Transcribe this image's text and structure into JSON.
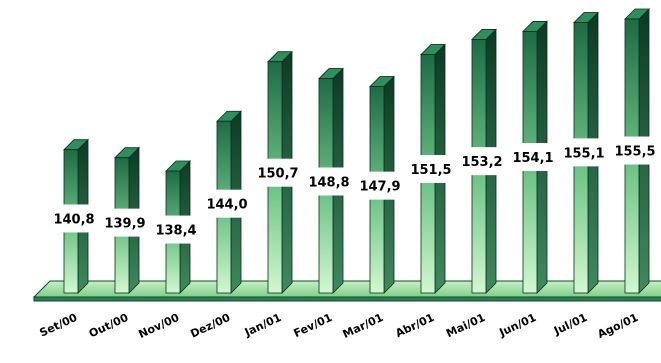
{
  "chart_data": {
    "type": "bar",
    "categories": [
      "Set/00",
      "Out/00",
      "Nov/00",
      "Dez/00",
      "Jan/01",
      "Fev/01",
      "Mar/01",
      "Abr/01",
      "Mai/01",
      "Jun/01",
      "Jul/01",
      "Ago/01"
    ],
    "values": [
      140.8,
      139.9,
      138.4,
      144.0,
      150.7,
      148.8,
      147.9,
      151.5,
      153.2,
      154.1,
      155.1,
      155.5
    ],
    "value_labels": [
      "140,8",
      "139,9",
      "138,4",
      "144,0",
      "150,7",
      "148,8",
      "147,9",
      "151,5",
      "153,2",
      "154,1",
      "155,1",
      "155,5"
    ],
    "title": "",
    "xlabel": "",
    "ylabel": "",
    "grid": false,
    "legend": "none",
    "style": "3d-column",
    "colors": {
      "bar_top": "#1e6b45",
      "bar_bottom": "#c9f5c5",
      "bar_side": "#10402a",
      "bar_cap": "#2f8f5c",
      "floor": "#9fdca2",
      "floor_edge": "#0e4a2c"
    }
  }
}
